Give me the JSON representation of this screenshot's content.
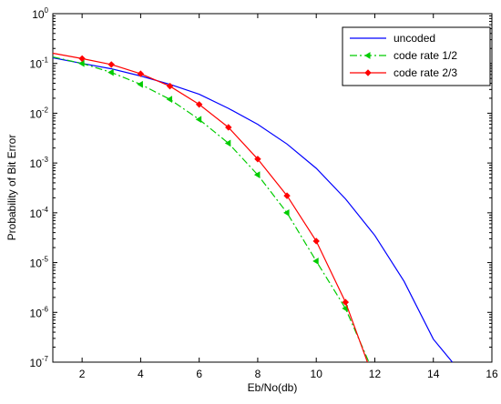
{
  "chart_data": {
    "type": "line",
    "title": "",
    "xlabel": "Eb/No(db)",
    "ylabel": "Probability of Bit Error",
    "xlim": [
      1,
      16
    ],
    "ylim": [
      1e-07,
      1
    ],
    "yscale": "log",
    "x_ticks": [
      2,
      4,
      6,
      8,
      10,
      12,
      14,
      16
    ],
    "y_ticks": [
      {
        "value": 1,
        "base": "10",
        "exp": "0"
      },
      {
        "value": 0.1,
        "base": "10",
        "exp": "-1"
      },
      {
        "value": 0.01,
        "base": "10",
        "exp": "-2"
      },
      {
        "value": 0.001,
        "base": "10",
        "exp": "-3"
      },
      {
        "value": 0.0001,
        "base": "10",
        "exp": "-4"
      },
      {
        "value": 1e-05,
        "base": "10",
        "exp": "-5"
      },
      {
        "value": 1e-06,
        "base": "10",
        "exp": "-6"
      },
      {
        "value": 1e-07,
        "base": "10",
        "exp": "-7"
      }
    ],
    "grid": false,
    "legend_position": "top-right",
    "series": [
      {
        "name": "uncoded",
        "color": "#0000ff",
        "style": "solid",
        "marker": "none",
        "points": [
          [
            1,
            0.13
          ],
          [
            2,
            0.1
          ],
          [
            3,
            0.078
          ],
          [
            4,
            0.056
          ],
          [
            5,
            0.038
          ],
          [
            6,
            0.024
          ],
          [
            7,
            0.0125
          ],
          [
            8,
            0.006
          ],
          [
            9,
            0.0024
          ],
          [
            10,
            0.00078
          ],
          [
            11,
            0.00019
          ],
          [
            12,
            3.5e-05
          ],
          [
            13,
            4.2e-06
          ],
          [
            14,
            2.9e-07
          ],
          [
            14.65,
            1e-07
          ]
        ]
      },
      {
        "name": "code rate 1/2",
        "color": "#00cc00",
        "style": "dashdot",
        "marker": "arrow",
        "points": [
          [
            1,
            0.135
          ],
          [
            2,
            0.1
          ],
          [
            3,
            0.066
          ],
          [
            4,
            0.038
          ],
          [
            5,
            0.019
          ],
          [
            6,
            0.0075
          ],
          [
            7,
            0.0025
          ],
          [
            8,
            0.00058
          ],
          [
            9,
            0.0001
          ],
          [
            10,
            1.07e-05
          ],
          [
            11,
            1.2e-06
          ],
          [
            11.8,
            1e-07
          ]
        ]
      },
      {
        "name": "code rate 2/3",
        "color": "#ff0000",
        "style": "solid",
        "marker": "diamond",
        "points": [
          [
            1,
            0.16
          ],
          [
            2,
            0.125
          ],
          [
            3,
            0.095
          ],
          [
            4,
            0.062
          ],
          [
            5,
            0.035
          ],
          [
            6,
            0.015
          ],
          [
            7,
            0.0052
          ],
          [
            8,
            0.0012
          ],
          [
            9,
            0.00022
          ],
          [
            10,
            2.7e-05
          ],
          [
            11,
            1.6e-06
          ],
          [
            11.75,
            1e-07
          ]
        ]
      }
    ]
  }
}
